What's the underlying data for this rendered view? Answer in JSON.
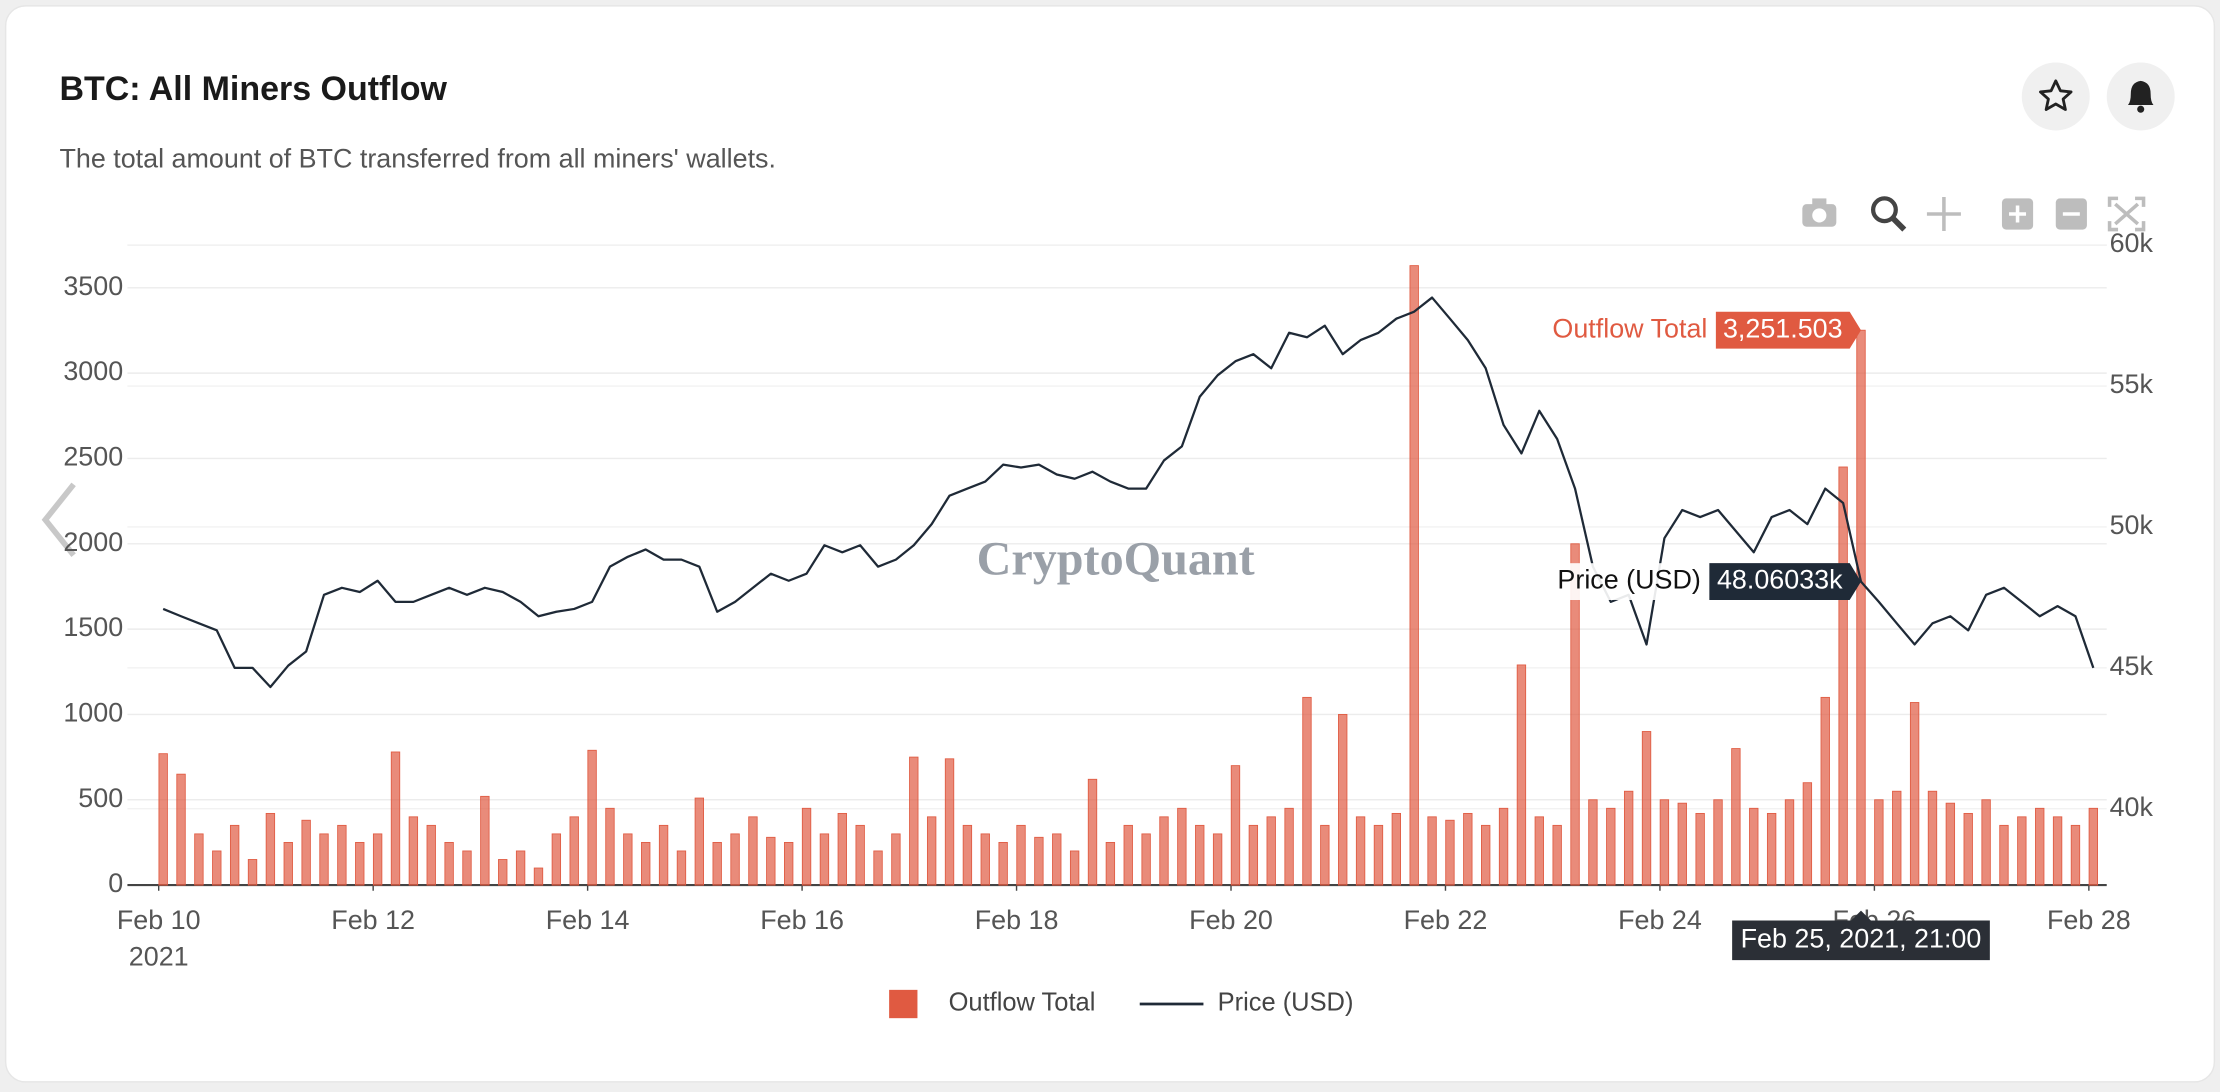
{
  "chart_data": {
    "type": "bar",
    "title": "BTC: All Miners Outflow",
    "subtitle": "The total amount of BTC transferred from all miners' wallets.",
    "watermark": "CryptoQuant",
    "x": [
      "2021-02-10T01:00",
      "2021-02-10T05:00",
      "2021-02-10T09:00",
      "2021-02-10T13:00",
      "2021-02-10T17:00",
      "2021-02-10T21:00",
      "2021-02-11T01:00",
      "2021-02-11T05:00",
      "2021-02-11T09:00",
      "2021-02-11T13:00",
      "2021-02-11T17:00",
      "2021-02-11T21:00",
      "2021-02-12T01:00",
      "2021-02-12T05:00",
      "2021-02-12T09:00",
      "2021-02-12T13:00",
      "2021-02-12T17:00",
      "2021-02-12T21:00",
      "2021-02-13T01:00",
      "2021-02-13T05:00",
      "2021-02-13T09:00",
      "2021-02-13T13:00",
      "2021-02-13T17:00",
      "2021-02-13T21:00",
      "2021-02-14T01:00",
      "2021-02-14T05:00",
      "2021-02-14T09:00",
      "2021-02-14T13:00",
      "2021-02-14T17:00",
      "2021-02-14T21:00",
      "2021-02-15T01:00",
      "2021-02-15T05:00",
      "2021-02-15T09:00",
      "2021-02-15T13:00",
      "2021-02-15T17:00",
      "2021-02-15T21:00",
      "2021-02-16T01:00",
      "2021-02-16T05:00",
      "2021-02-16T09:00",
      "2021-02-16T13:00",
      "2021-02-16T17:00",
      "2021-02-16T21:00",
      "2021-02-17T01:00",
      "2021-02-17T05:00",
      "2021-02-17T09:00",
      "2021-02-17T13:00",
      "2021-02-17T17:00",
      "2021-02-17T21:00",
      "2021-02-18T01:00",
      "2021-02-18T05:00",
      "2021-02-18T09:00",
      "2021-02-18T13:00",
      "2021-02-18T17:00",
      "2021-02-18T21:00",
      "2021-02-19T01:00",
      "2021-02-19T05:00",
      "2021-02-19T09:00",
      "2021-02-19T13:00",
      "2021-02-19T17:00",
      "2021-02-19T21:00",
      "2021-02-20T01:00",
      "2021-02-20T05:00",
      "2021-02-20T09:00",
      "2021-02-20T13:00",
      "2021-02-20T17:00",
      "2021-02-20T21:00",
      "2021-02-21T01:00",
      "2021-02-21T05:00",
      "2021-02-21T09:00",
      "2021-02-21T13:00",
      "2021-02-21T17:00",
      "2021-02-21T21:00",
      "2021-02-22T01:00",
      "2021-02-22T05:00",
      "2021-02-22T09:00",
      "2021-02-22T13:00",
      "2021-02-22T17:00",
      "2021-02-22T21:00",
      "2021-02-23T01:00",
      "2021-02-23T05:00",
      "2021-02-23T09:00",
      "2021-02-23T13:00",
      "2021-02-23T17:00",
      "2021-02-23T21:00",
      "2021-02-24T01:00",
      "2021-02-24T05:00",
      "2021-02-24T09:00",
      "2021-02-24T13:00",
      "2021-02-24T17:00",
      "2021-02-24T21:00",
      "2021-02-25T01:00",
      "2021-02-25T05:00",
      "2021-02-25T09:00",
      "2021-02-25T13:00",
      "2021-02-25T17:00",
      "2021-02-25T21:00",
      "2021-02-26T01:00",
      "2021-02-26T05:00",
      "2021-02-26T09:00",
      "2021-02-26T13:00",
      "2021-02-26T17:00",
      "2021-02-26T21:00",
      "2021-02-27T01:00",
      "2021-02-27T05:00",
      "2021-02-27T09:00",
      "2021-02-27T13:00",
      "2021-02-27T17:00",
      "2021-02-27T21:00",
      "2021-02-28T01:00"
    ],
    "xlim": [
      "2021-02-09T17:00",
      "2021-02-28T04:00"
    ],
    "xticks": [
      {
        "value": "2021-02-10T00:00",
        "label": "Feb 10\n2021"
      },
      {
        "value": "2021-02-12T00:00",
        "label": "Feb 12"
      },
      {
        "value": "2021-02-14T00:00",
        "label": "Feb 14"
      },
      {
        "value": "2021-02-16T00:00",
        "label": "Feb 16"
      },
      {
        "value": "2021-02-18T00:00",
        "label": "Feb 18"
      },
      {
        "value": "2021-02-20T00:00",
        "label": "Feb 20"
      },
      {
        "value": "2021-02-22T00:00",
        "label": "Feb 22"
      },
      {
        "value": "2021-02-24T00:00",
        "label": "Feb 24"
      },
      {
        "value": "2021-02-26T00:00",
        "label": "Feb 26"
      },
      {
        "value": "2021-02-28T00:00",
        "label": "Feb 28"
      }
    ],
    "ylim": [
      0,
      3750
    ],
    "yticks": [
      0,
      500,
      1000,
      1500,
      2000,
      2500,
      3000,
      3500
    ],
    "y2lim": [
      37290,
      60000
    ],
    "y2ticks": [
      {
        "value": 40000,
        "label": "40k"
      },
      {
        "value": 45000,
        "label": "45k"
      },
      {
        "value": 50000,
        "label": "50k"
      },
      {
        "value": 55000,
        "label": "55k"
      },
      {
        "value": 60000,
        "label": "60k"
      }
    ],
    "grid": true,
    "legend": "bottom",
    "series": [
      {
        "name": "Outflow Total",
        "type": "bar",
        "color": "#e05a41",
        "values": [
          770,
          650,
          300,
          200,
          350,
          150,
          420,
          250,
          380,
          300,
          350,
          250,
          300,
          780,
          400,
          350,
          250,
          200,
          520,
          150,
          200,
          100,
          300,
          400,
          790,
          450,
          300,
          250,
          350,
          200,
          510,
          250,
          300,
          400,
          280,
          250,
          450,
          300,
          420,
          350,
          200,
          300,
          750,
          400,
          740,
          350,
          300,
          250,
          350,
          280,
          300,
          200,
          620,
          250,
          350,
          300,
          400,
          450,
          350,
          300,
          700,
          350,
          400,
          450,
          1100,
          350,
          1000,
          400,
          350,
          420,
          3630,
          400,
          380,
          420,
          350,
          450,
          1290,
          400,
          350,
          2000,
          500,
          450,
          550,
          900,
          500,
          480,
          420,
          500,
          800,
          450,
          420,
          500,
          600,
          1100,
          2450,
          3251.503,
          500,
          550,
          1070,
          550,
          480,
          420,
          500,
          350,
          400,
          450,
          400,
          350,
          450
        ]
      },
      {
        "name": "Price (USD)",
        "type": "line",
        "axis": "y2",
        "color": "#1f2a37",
        "values": [
          47090,
          46830,
          46580,
          46330,
          45000,
          45000,
          44320,
          45080,
          45580,
          47590,
          47840,
          47690,
          48090,
          47340,
          47340,
          47590,
          47840,
          47590,
          47840,
          47690,
          47340,
          46830,
          46990,
          47090,
          47340,
          48590,
          48940,
          49200,
          48840,
          48840,
          48590,
          46990,
          47340,
          47840,
          48340,
          48090,
          48340,
          49350,
          49100,
          49350,
          48590,
          48840,
          49350,
          50100,
          51110,
          51360,
          51610,
          52210,
          52110,
          52210,
          51860,
          51710,
          51960,
          51610,
          51360,
          51360,
          52360,
          52860,
          54620,
          55380,
          55880,
          56130,
          55630,
          56890,
          56730,
          57140,
          56130,
          56630,
          56890,
          57390,
          57640,
          58140,
          57390,
          56630,
          55630,
          53620,
          52610,
          54120,
          53120,
          51360,
          48590,
          47340,
          47590,
          45830,
          49600,
          50600,
          50350,
          50600,
          49850,
          49100,
          50350,
          50600,
          50100,
          51360,
          50850,
          48060.33,
          47340,
          46580,
          45830,
          46580,
          46830,
          46330,
          47590,
          47840,
          47340,
          46830,
          47190,
          46830,
          45000
        ]
      }
    ],
    "hover": {
      "x": "2021-02-25T21:00",
      "x_label": "Feb 25, 2021, 21:00",
      "values": [
        3251.503,
        48060.33
      ],
      "value_labels": [
        "3,251.503",
        "48.06033k"
      ]
    }
  }
}
